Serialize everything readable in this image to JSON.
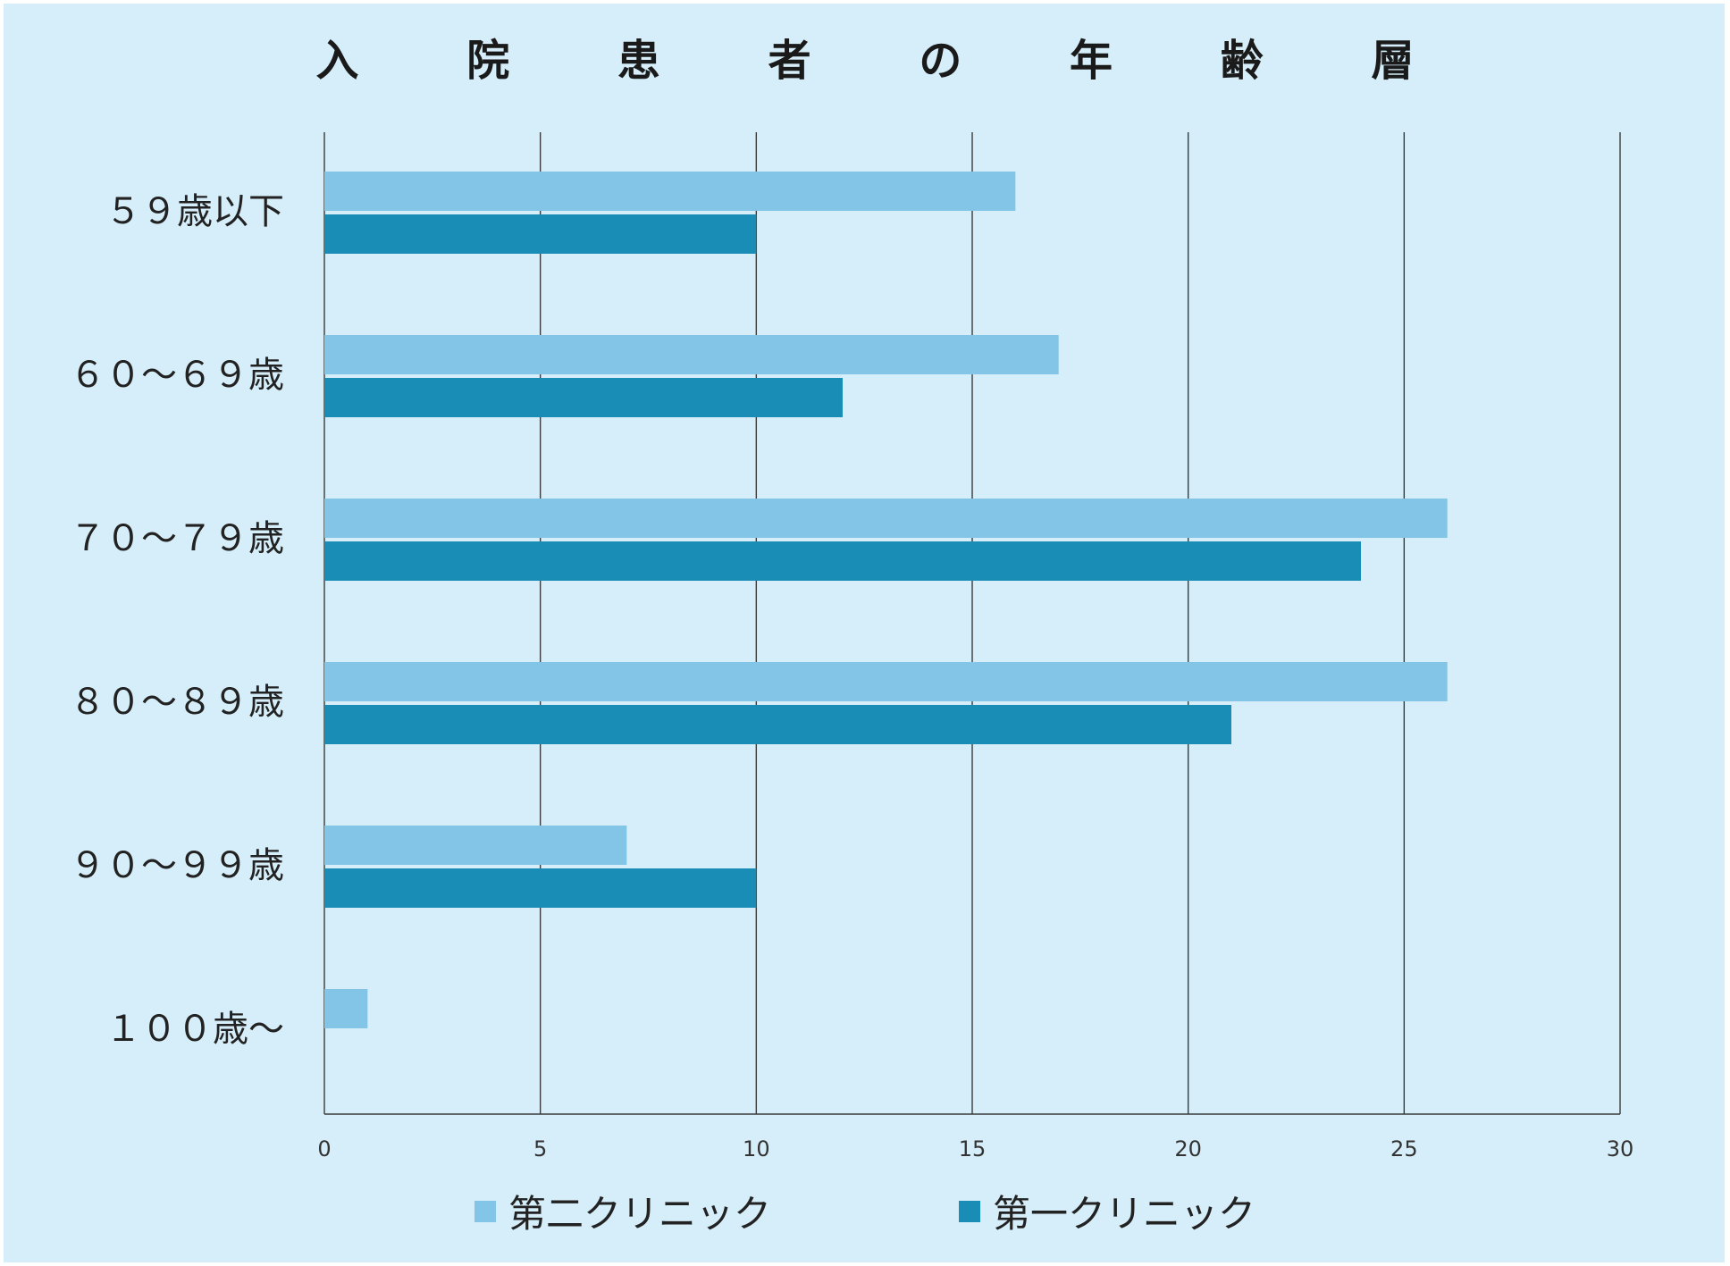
{
  "chart_data": {
    "type": "bar",
    "orientation": "horizontal",
    "title": "入 院 患 者 の 年 齢 層",
    "categories": [
      "５９歳以下",
      "６０～６９歳",
      "７０～７９歳",
      "８０～８９歳",
      "９０～９９歳",
      "１００歳～"
    ],
    "series": [
      {
        "name": "第二クリニック",
        "color": "#83c5e6",
        "values": [
          16,
          17,
          26,
          26,
          7,
          1
        ]
      },
      {
        "name": "第一クリニック",
        "color": "#1a8db7",
        "values": [
          10,
          12,
          24,
          21,
          10,
          0
        ]
      }
    ],
    "xlim": [
      0,
      30
    ],
    "xticks": [
      "0",
      "5",
      "10",
      "15",
      "20",
      "25",
      "30"
    ],
    "grid": true,
    "legend_position": "bottom",
    "background": "#d5eef9"
  }
}
